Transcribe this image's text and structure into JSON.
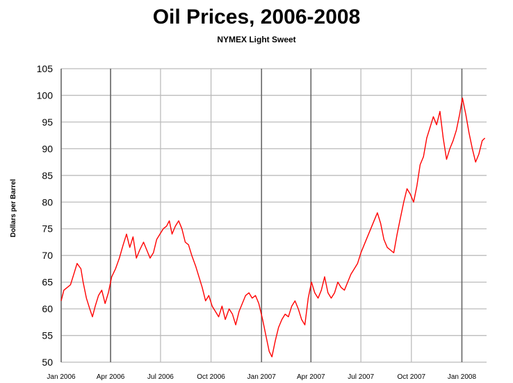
{
  "title": "Oil Prices, 2006-2008",
  "subtitle": "NYMEX Light Sweet",
  "colors": {
    "line": "#ff0000",
    "major_grid": "#666666",
    "minor_grid": "#bbbbbb"
  },
  "chart_data": {
    "type": "line",
    "title": "Oil Prices, 2006-2008",
    "subtitle": "NYMEX Light Sweet",
    "xlabel": "",
    "ylabel": "Dollars per Barrel",
    "ylim": [
      50,
      105
    ],
    "yticks": [
      50,
      55,
      60,
      65,
      70,
      75,
      80,
      85,
      90,
      95,
      100,
      105
    ],
    "xlim": [
      "2006-01-01",
      "2008-02-15"
    ],
    "xticks": [
      {
        "date": "2006-01-01",
        "label": "Jan 2006"
      },
      {
        "date": "2006-04-01",
        "label": "Apr 2006"
      },
      {
        "date": "2006-07-01",
        "label": "Jul 2006"
      },
      {
        "date": "2006-10-01",
        "label": "Oct 2006"
      },
      {
        "date": "2007-01-01",
        "label": "Jan 2007"
      },
      {
        "date": "2007-04-01",
        "label": "Apr 2007"
      },
      {
        "date": "2007-07-01",
        "label": "Jul 2007"
      },
      {
        "date": "2007-10-01",
        "label": "Oct 2007"
      },
      {
        "date": "2008-01-01",
        "label": "Jan 2008"
      }
    ],
    "grid": true,
    "series": [
      {
        "values": [
          [
            "2006-01-01",
            61.5
          ],
          [
            "2006-01-06",
            63.5
          ],
          [
            "2006-01-12",
            64.0
          ],
          [
            "2006-01-18",
            64.5
          ],
          [
            "2006-01-24",
            66.5
          ],
          [
            "2006-01-30",
            68.5
          ],
          [
            "2006-02-06",
            67.5
          ],
          [
            "2006-02-10",
            65.0
          ],
          [
            "2006-02-16",
            62.0
          ],
          [
            "2006-02-22",
            60.0
          ],
          [
            "2006-02-27",
            58.5
          ],
          [
            "2006-03-04",
            60.5
          ],
          [
            "2006-03-10",
            62.5
          ],
          [
            "2006-03-16",
            63.5
          ],
          [
            "2006-03-22",
            61.0
          ],
          [
            "2006-03-28",
            63.0
          ],
          [
            "2006-04-03",
            66.0
          ],
          [
            "2006-04-10",
            67.5
          ],
          [
            "2006-04-17",
            69.5
          ],
          [
            "2006-04-24",
            72.0
          ],
          [
            "2006-04-30",
            74.0
          ],
          [
            "2006-05-06",
            71.5
          ],
          [
            "2006-05-12",
            73.5
          ],
          [
            "2006-05-18",
            69.5
          ],
          [
            "2006-05-24",
            71.0
          ],
          [
            "2006-05-31",
            72.5
          ],
          [
            "2006-06-06",
            71.0
          ],
          [
            "2006-06-12",
            69.5
          ],
          [
            "2006-06-18",
            70.5
          ],
          [
            "2006-06-24",
            73.0
          ],
          [
            "2006-06-30",
            74.0
          ],
          [
            "2006-07-06",
            75.0
          ],
          [
            "2006-07-12",
            75.5
          ],
          [
            "2006-07-17",
            76.5
          ],
          [
            "2006-07-22",
            74.0
          ],
          [
            "2006-07-28",
            75.5
          ],
          [
            "2006-08-03",
            76.5
          ],
          [
            "2006-08-09",
            75.0
          ],
          [
            "2006-08-15",
            72.5
          ],
          [
            "2006-08-21",
            72.0
          ],
          [
            "2006-08-27",
            70.0
          ],
          [
            "2006-09-03",
            68.0
          ],
          [
            "2006-09-09",
            66.0
          ],
          [
            "2006-09-15",
            64.0
          ],
          [
            "2006-09-21",
            61.5
          ],
          [
            "2006-09-27",
            62.5
          ],
          [
            "2006-10-03",
            60.5
          ],
          [
            "2006-10-09",
            59.5
          ],
          [
            "2006-10-15",
            58.5
          ],
          [
            "2006-10-21",
            60.5
          ],
          [
            "2006-10-27",
            58.0
          ],
          [
            "2006-11-03",
            60.0
          ],
          [
            "2006-11-09",
            59.0
          ],
          [
            "2006-11-15",
            57.0
          ],
          [
            "2006-11-21",
            59.5
          ],
          [
            "2006-11-27",
            61.0
          ],
          [
            "2006-12-03",
            62.5
          ],
          [
            "2006-12-09",
            63.0
          ],
          [
            "2006-12-15",
            62.0
          ],
          [
            "2006-12-21",
            62.5
          ],
          [
            "2006-12-27",
            61.0
          ],
          [
            "2007-01-03",
            58.0
          ],
          [
            "2007-01-09",
            55.0
          ],
          [
            "2007-01-15",
            52.0
          ],
          [
            "2007-01-20",
            51.0
          ],
          [
            "2007-01-26",
            54.0
          ],
          [
            "2007-02-01",
            56.5
          ],
          [
            "2007-02-07",
            58.0
          ],
          [
            "2007-02-13",
            59.0
          ],
          [
            "2007-02-19",
            58.5
          ],
          [
            "2007-02-25",
            60.5
          ],
          [
            "2007-03-03",
            61.5
          ],
          [
            "2007-03-09",
            60.0
          ],
          [
            "2007-03-15",
            58.0
          ],
          [
            "2007-03-21",
            57.0
          ],
          [
            "2007-03-27",
            62.0
          ],
          [
            "2007-04-02",
            65.0
          ],
          [
            "2007-04-08",
            63.0
          ],
          [
            "2007-04-14",
            62.0
          ],
          [
            "2007-04-20",
            63.5
          ],
          [
            "2007-04-26",
            66.0
          ],
          [
            "2007-05-02",
            63.0
          ],
          [
            "2007-05-08",
            62.0
          ],
          [
            "2007-05-14",
            63.0
          ],
          [
            "2007-05-20",
            65.0
          ],
          [
            "2007-05-26",
            64.0
          ],
          [
            "2007-06-01",
            63.5
          ],
          [
            "2007-06-07",
            65.0
          ],
          [
            "2007-06-13",
            66.5
          ],
          [
            "2007-06-19",
            67.5
          ],
          [
            "2007-06-25",
            68.5
          ],
          [
            "2007-07-01",
            70.5
          ],
          [
            "2007-07-07",
            72.0
          ],
          [
            "2007-07-13",
            73.5
          ],
          [
            "2007-07-19",
            75.0
          ],
          [
            "2007-07-25",
            76.5
          ],
          [
            "2007-07-31",
            78.0
          ],
          [
            "2007-08-06",
            76.0
          ],
          [
            "2007-08-12",
            73.0
          ],
          [
            "2007-08-18",
            71.5
          ],
          [
            "2007-08-24",
            71.0
          ],
          [
            "2007-08-30",
            70.5
          ],
          [
            "2007-09-05",
            74.0
          ],
          [
            "2007-09-11",
            77.0
          ],
          [
            "2007-09-17",
            80.0
          ],
          [
            "2007-09-23",
            82.5
          ],
          [
            "2007-09-29",
            81.5
          ],
          [
            "2007-10-05",
            80.0
          ],
          [
            "2007-10-11",
            83.0
          ],
          [
            "2007-10-17",
            87.0
          ],
          [
            "2007-10-23",
            88.5
          ],
          [
            "2007-10-29",
            92.0
          ],
          [
            "2007-11-04",
            94.0
          ],
          [
            "2007-11-10",
            96.0
          ],
          [
            "2007-11-16",
            94.5
          ],
          [
            "2007-11-22",
            97.0
          ],
          [
            "2007-11-28",
            92.0
          ],
          [
            "2007-12-04",
            88.0
          ],
          [
            "2007-12-10",
            90.0
          ],
          [
            "2007-12-16",
            91.5
          ],
          [
            "2007-12-22",
            93.5
          ],
          [
            "2007-12-28",
            96.5
          ],
          [
            "2008-01-02",
            99.5
          ],
          [
            "2008-01-08",
            96.5
          ],
          [
            "2008-01-14",
            93.0
          ],
          [
            "2008-01-20",
            90.0
          ],
          [
            "2008-01-26",
            87.5
          ],
          [
            "2008-02-01",
            89.0
          ],
          [
            "2008-02-07",
            91.5
          ],
          [
            "2008-02-12",
            92.0
          ]
        ]
      }
    ]
  }
}
